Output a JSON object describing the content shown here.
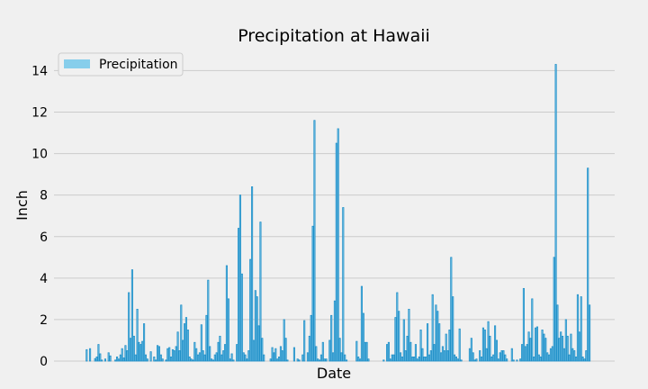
{
  "chart_data": {
    "type": "bar",
    "title": "Precipitation at Hawaii",
    "xlabel": "Date",
    "ylabel": "Inch",
    "ylim": [
      0,
      14.8
    ],
    "yticks": [
      0,
      2,
      4,
      6,
      8,
      10,
      12,
      14
    ],
    "ytick_labels": [
      "0",
      "2",
      "4",
      "6",
      "8",
      "10",
      "12",
      "14"
    ],
    "grid": true,
    "legend_position": "upper-left",
    "series": [
      {
        "name": "Precipitation",
        "color": "#87ceeb",
        "edge_color": "#1f8fc8",
        "values": [
          0.0,
          0.0,
          0.0,
          0.0,
          0.0,
          0.55,
          0.0,
          0.6,
          0.0,
          0.0,
          0.12,
          0.2,
          0.8,
          0.35,
          0.05,
          0.0,
          0.1,
          0.0,
          0.4,
          0.25,
          0.0,
          0.0,
          0.05,
          0.2,
          0.1,
          0.3,
          0.6,
          0.15,
          0.75,
          0.5,
          3.3,
          1.1,
          4.4,
          1.2,
          0.3,
          2.5,
          0.9,
          0.8,
          0.95,
          1.8,
          0.3,
          0.1,
          0.0,
          0.45,
          0.0,
          0.2,
          0.05,
          0.75,
          0.7,
          0.3,
          0.1,
          0.0,
          0.05,
          0.6,
          0.65,
          0.2,
          0.55,
          0.5,
          0.7,
          1.4,
          0.5,
          2.7,
          1.0,
          1.8,
          2.1,
          1.5,
          0.2,
          0.1,
          0.05,
          0.9,
          0.6,
          0.3,
          0.4,
          1.75,
          0.5,
          0.3,
          2.2,
          3.9,
          0.7,
          0.1,
          0.05,
          0.3,
          0.4,
          0.9,
          1.2,
          0.3,
          0.5,
          0.8,
          4.6,
          3.0,
          0.1,
          0.35,
          0.05,
          0.0,
          0.8,
          6.4,
          8.0,
          4.2,
          0.4,
          0.3,
          0.1,
          0.5,
          4.9,
          8.4,
          1.0,
          3.4,
          3.1,
          1.7,
          6.7,
          1.1,
          0.3,
          0.0,
          0.0,
          0.0,
          0.1,
          0.65,
          0.4,
          0.6,
          0.1,
          0.2,
          0.7,
          0.5,
          2.0,
          1.1,
          0.05,
          0.0,
          0.0,
          0.0,
          0.65,
          0.0,
          0.1,
          0.05,
          0.0,
          0.3,
          1.95,
          0.0,
          0.4,
          1.2,
          2.2,
          6.5,
          11.6,
          0.7,
          0.1,
          0.05,
          0.3,
          0.9,
          0.1,
          0.1,
          0.0,
          1.0,
          2.2,
          0.4,
          2.9,
          10.5,
          11.2,
          1.1,
          0.4,
          7.4,
          0.3,
          0.05,
          0.0,
          0.0,
          0.0,
          0.0,
          0.0,
          0.95,
          0.2,
          0.1,
          3.6,
          2.3,
          0.9,
          0.9,
          0.1,
          0.0,
          0.0,
          0.0,
          0.0,
          0.0,
          0.0,
          0.0,
          0.0,
          0.05,
          0.0,
          0.8,
          0.9,
          0.1,
          0.3,
          0.3,
          2.1,
          3.3,
          2.4,
          0.4,
          0.2,
          2.0,
          0.5,
          1.2,
          2.5,
          0.9,
          0.2,
          0.2,
          0.8,
          0.1,
          0.2,
          1.5,
          0.6,
          0.2,
          0.2,
          1.8,
          0.3,
          0.5,
          3.2,
          0.8,
          2.7,
          2.4,
          1.8,
          0.4,
          0.7,
          0.5,
          1.3,
          0.5,
          1.5,
          5.0,
          3.1,
          0.3,
          0.2,
          0.1,
          1.55,
          0.05,
          0.0,
          0.0,
          0.0,
          0.0,
          0.6,
          1.1,
          0.4,
          0.05,
          0.1,
          0.0,
          0.5,
          0.2,
          1.6,
          1.5,
          0.6,
          1.9,
          1.2,
          0.2,
          0.3,
          1.7,
          1.0,
          0.1,
          0.4,
          0.5,
          0.5,
          0.3,
          0.1,
          0.0,
          0.0,
          0.6,
          0.05,
          0.0,
          0.05,
          0.0,
          0.1,
          0.8,
          3.5,
          0.7,
          0.8,
          1.4,
          1.1,
          3.0,
          0.2,
          1.6,
          1.65,
          0.3,
          0.2,
          1.5,
          1.3,
          1.1,
          0.4,
          0.3,
          0.6,
          0.7,
          5.0,
          14.3,
          2.7,
          1.1,
          1.4,
          1.2,
          0.6,
          2.0,
          1.2,
          0.3,
          1.3,
          0.6,
          0.5,
          0.2,
          3.2,
          1.4,
          3.1,
          0.2,
          0.1,
          0.5,
          9.3,
          2.7
        ]
      }
    ]
  }
}
